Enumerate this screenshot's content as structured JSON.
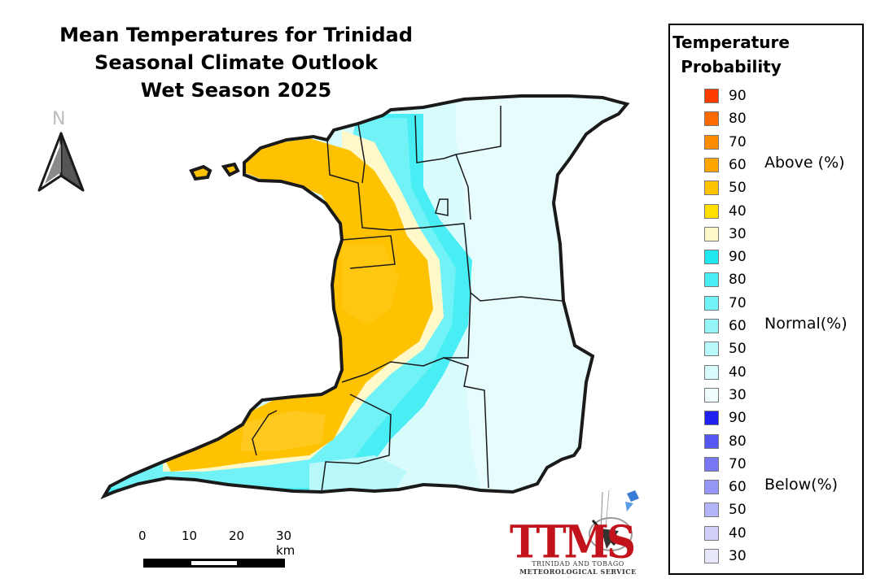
{
  "title": {
    "line1": "Mean Temperatures for Trinidad",
    "line2": "Seasonal Climate Outlook",
    "line3": "Wet Season 2025"
  },
  "north_arrow": {
    "label": "N"
  },
  "scale_bar": {
    "ticks": [
      "0",
      "10",
      "20",
      "30 km"
    ]
  },
  "legend": {
    "title_line1": "Temperature",
    "title_line2": "Probability",
    "groups": [
      {
        "label": "Above (%)",
        "items": [
          {
            "value": "90",
            "color": "#ff3b00"
          },
          {
            "value": "80",
            "color": "#ff6a00"
          },
          {
            "value": "70",
            "color": "#ff8c00"
          },
          {
            "value": "60",
            "color": "#ffa500"
          },
          {
            "value": "50",
            "color": "#ffc200"
          },
          {
            "value": "40",
            "color": "#ffe000"
          },
          {
            "value": "30",
            "color": "#fff8c8"
          }
        ]
      },
      {
        "label": "Normal(%)",
        "items": [
          {
            "value": "90",
            "color": "#20e8f0"
          },
          {
            "value": "80",
            "color": "#48eef4"
          },
          {
            "value": "70",
            "color": "#70f2f6"
          },
          {
            "value": "60",
            "color": "#96f5f8"
          },
          {
            "value": "50",
            "color": "#b8f8fa"
          },
          {
            "value": "40",
            "color": "#d8fbfc"
          },
          {
            "value": "30",
            "color": "#f0feff"
          }
        ]
      },
      {
        "label": "Below(%)",
        "items": [
          {
            "value": "90",
            "color": "#2020f0"
          },
          {
            "value": "80",
            "color": "#5656f2"
          },
          {
            "value": "70",
            "color": "#7878f4"
          },
          {
            "value": "60",
            "color": "#9696f6"
          },
          {
            "value": "50",
            "color": "#b4b4f8"
          },
          {
            "value": "40",
            "color": "#d0d0fa"
          },
          {
            "value": "30",
            "color": "#e8e8fc"
          }
        ]
      }
    ]
  },
  "logo": {
    "name": "TTMS",
    "line1": "TRINIDAD AND TOBAGO",
    "line2": "METEOROLOGICAL SERVICE"
  },
  "colors": {
    "above_50": "#ffc200",
    "above_40": "#ffe000",
    "above_30": "#fff8c8",
    "normal_80": "#48eef4",
    "normal_60": "#96f5f8",
    "normal_50": "#b8f8fa",
    "normal_40": "#d8fbfc",
    "outline": "#1a1a1a"
  }
}
